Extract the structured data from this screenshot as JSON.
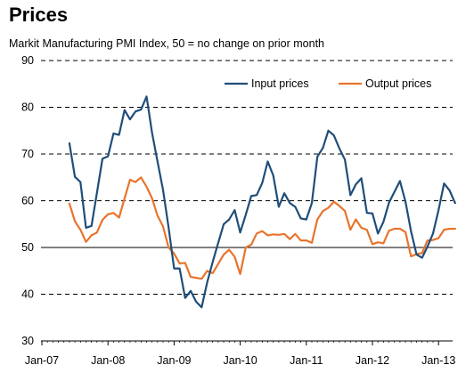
{
  "chart_data": {
    "type": "line",
    "title": "Prices",
    "subtitle": "Markit Manufacturing PMI Index, 50 = no change on prior month",
    "xlabel": "",
    "ylabel": "",
    "ylim": [
      30,
      90
    ],
    "yticks": [
      30,
      40,
      50,
      60,
      70,
      80,
      90
    ],
    "xticks": [
      "Jan-07",
      "Jan-08",
      "Jan-09",
      "Jan-10",
      "Jan-11",
      "Jan-12",
      "Jan-13"
    ],
    "x_start": "2007-06",
    "reference_line": 50,
    "grid": "dashed horizontal",
    "legend_position": "top-right",
    "colors": {
      "input": "#1f4e79",
      "output": "#e8742c"
    },
    "series": [
      {
        "name": "Input prices",
        "values": [
          72.3,
          65.1,
          64.0,
          54.2,
          54.6,
          61.7,
          69.0,
          69.5,
          74.4,
          74.1,
          79.4,
          77.4,
          79.1,
          79.5,
          82.3,
          74.5,
          68.4,
          62.3,
          54.3,
          45.5,
          45.5,
          39.2,
          40.7,
          38.4,
          37.2,
          42.5,
          46.9,
          51.0,
          55.0,
          56.0,
          58.0,
          53.2,
          57.0,
          61.0,
          61.2,
          63.8,
          68.4,
          65.4,
          58.7,
          61.6,
          59.5,
          58.7,
          56.2,
          56.0,
          59.5,
          69.4,
          71.3,
          75.0,
          74.0,
          71.2,
          68.8,
          61.2,
          63.5,
          64.8,
          57.4,
          57.3,
          53.0,
          55.5,
          59.6,
          61.9,
          64.2,
          59.8,
          53.5,
          48.5,
          47.8,
          50.2,
          53.0,
          58.0,
          63.7,
          62.2,
          59.5
        ]
      },
      {
        "name": "Output prices",
        "values": [
          59.4,
          55.6,
          53.8,
          51.2,
          52.6,
          53.2,
          55.9,
          57.1,
          57.4,
          56.4,
          60.5,
          64.5,
          64.0,
          65.0,
          63.0,
          60.5,
          56.8,
          54.5,
          50.0,
          48.7,
          46.6,
          46.7,
          43.7,
          43.5,
          43.3,
          45.0,
          44.5,
          46.5,
          48.5,
          49.5,
          48.0,
          44.3,
          50.0,
          50.6,
          53.0,
          53.5,
          52.6,
          52.8,
          52.7,
          52.9,
          51.8,
          52.9,
          51.5,
          51.5,
          51.0,
          56.0,
          57.8,
          58.5,
          59.8,
          58.9,
          57.8,
          53.8,
          56.0,
          54.2,
          53.8,
          50.7,
          51.1,
          50.9,
          53.6,
          54.0,
          54.0,
          53.3,
          48.1,
          48.6,
          48.8,
          51.5,
          51.6,
          52.0,
          53.8,
          54.0,
          54.0
        ]
      }
    ]
  }
}
